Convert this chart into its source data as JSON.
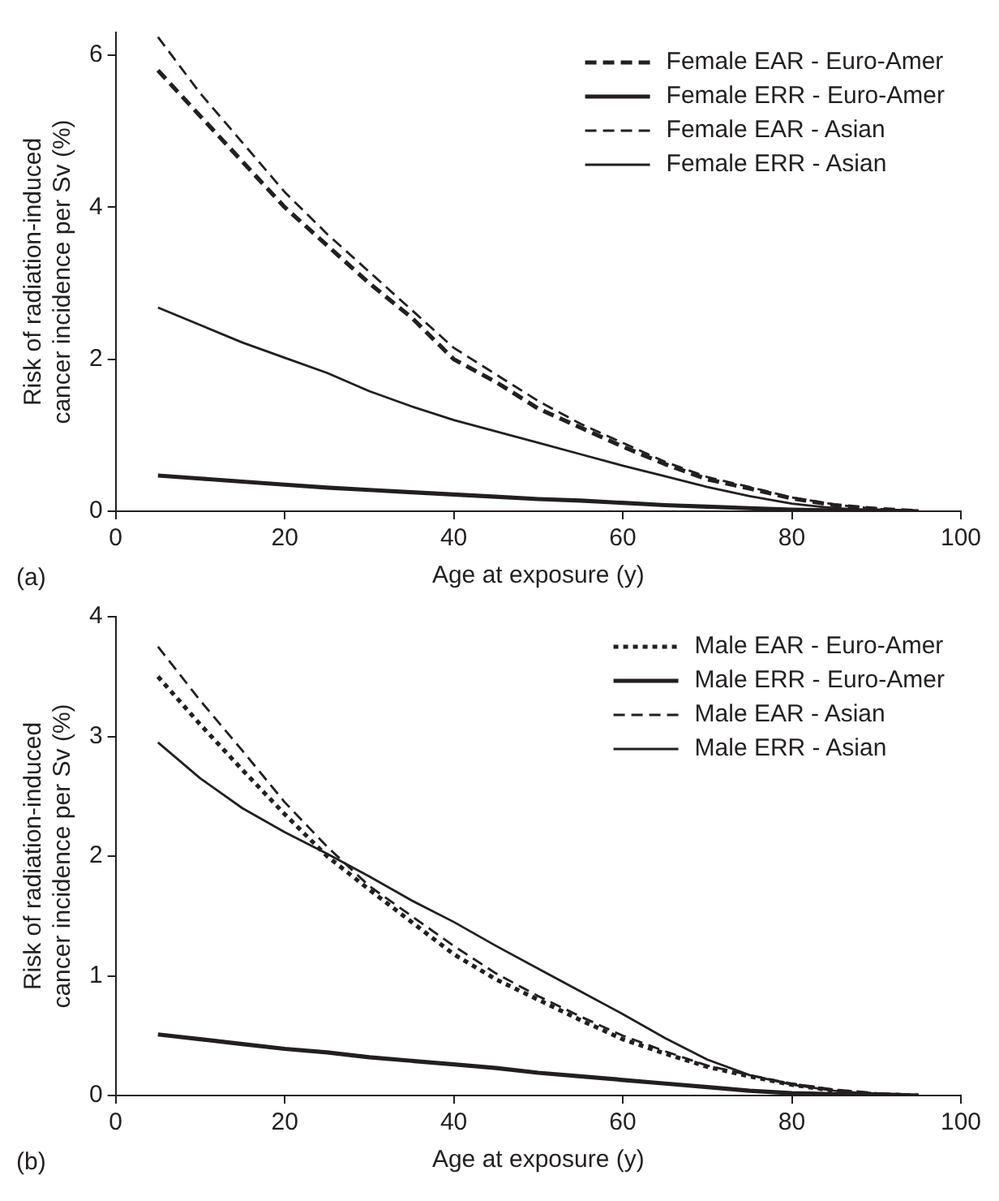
{
  "chart_data": [
    {
      "type": "line",
      "xlabel": "Age at exposure (y)",
      "ylabel": "Risk of radiation-induced\ncancer incidence per Sv (%)",
      "annotations": [
        "(a)"
      ],
      "legend": "top right",
      "grid": false,
      "marker": "none",
      "x": [
        5,
        10,
        15,
        20,
        25,
        30,
        35,
        40,
        45,
        50,
        55,
        60,
        65,
        70,
        75,
        80,
        85,
        90,
        95
      ],
      "xlim": [
        0,
        100
      ],
      "xticks": [
        0,
        20,
        40,
        60,
        80,
        100
      ],
      "ylim": [
        0,
        6.3
      ],
      "yticks": [
        0,
        2,
        4,
        6
      ],
      "series": [
        {
          "name": "Female EAR - Euro-Amer",
          "color": "#231f20",
          "line_style": "dashed",
          "values": [
            5.8,
            5.2,
            4.6,
            4.0,
            3.5,
            3.0,
            2.55,
            2.0,
            1.7,
            1.35,
            1.1,
            0.85,
            0.62,
            0.42,
            0.3,
            0.17,
            0.08,
            0.03,
            0
          ]
        },
        {
          "name": "Female ERR - Euro-Amer",
          "color": "#231f20",
          "line_style": "solid",
          "values": [
            0.47,
            0.43,
            0.39,
            0.35,
            0.31,
            0.28,
            0.25,
            0.22,
            0.19,
            0.16,
            0.14,
            0.11,
            0.08,
            0.06,
            0.04,
            0.02,
            0.01,
            0.01,
            0
          ]
        },
        {
          "name": "Female EAR - Asian",
          "color": "#231f20",
          "line_style": "dashed",
          "values": [
            6.24,
            5.5,
            4.85,
            4.2,
            3.65,
            3.15,
            2.65,
            2.15,
            1.8,
            1.45,
            1.15,
            0.9,
            0.65,
            0.45,
            0.32,
            0.18,
            0.09,
            0.03,
            0
          ]
        },
        {
          "name": "Female ERR - Asian",
          "color": "#231f20",
          "line_style": "solid",
          "values": [
            2.68,
            2.45,
            2.22,
            2.02,
            1.82,
            1.58,
            1.38,
            1.2,
            1.05,
            0.9,
            0.75,
            0.6,
            0.46,
            0.32,
            0.2,
            0.1,
            0.04,
            0.01,
            0
          ]
        }
      ]
    },
    {
      "type": "line",
      "xlabel": "Age at exposure (y)",
      "ylabel": "Risk of radiation-induced\ncancer incidence per Sv (%)",
      "annotations": [
        "(b)"
      ],
      "legend": "top right",
      "grid": false,
      "marker": "none",
      "x": [
        5,
        10,
        15,
        20,
        25,
        30,
        35,
        40,
        45,
        50,
        55,
        60,
        65,
        70,
        75,
        80,
        85,
        90,
        95
      ],
      "xlim": [
        0,
        100
      ],
      "xticks": [
        0,
        20,
        40,
        60,
        80,
        100
      ],
      "ylim": [
        0,
        4
      ],
      "yticks": [
        0,
        1,
        2,
        3,
        4
      ],
      "series": [
        {
          "name": "Male EAR - Euro-Amer",
          "color": "#231f20",
          "line_style": "dotted",
          "values": [
            3.5,
            3.1,
            2.72,
            2.35,
            2.0,
            1.72,
            1.45,
            1.18,
            0.97,
            0.8,
            0.63,
            0.47,
            0.35,
            0.24,
            0.16,
            0.09,
            0.04,
            0.01,
            0
          ]
        },
        {
          "name": "Male ERR - Euro-Amer",
          "color": "#231f20",
          "line_style": "solid",
          "values": [
            0.51,
            0.47,
            0.43,
            0.39,
            0.36,
            0.32,
            0.29,
            0.26,
            0.23,
            0.19,
            0.16,
            0.13,
            0.1,
            0.07,
            0.04,
            0.02,
            0.01,
            0.01,
            0
          ]
        },
        {
          "name": "Male EAR - Asian",
          "color": "#231f20",
          "line_style": "dashed",
          "values": [
            3.75,
            3.3,
            2.88,
            2.45,
            2.08,
            1.75,
            1.5,
            1.25,
            1.02,
            0.83,
            0.66,
            0.5,
            0.37,
            0.25,
            0.17,
            0.1,
            0.05,
            0.02,
            0
          ]
        },
        {
          "name": "Male ERR - Asian",
          "color": "#231f20",
          "line_style": "solid",
          "values": [
            2.95,
            2.65,
            2.4,
            2.2,
            2.02,
            1.83,
            1.63,
            1.45,
            1.25,
            1.06,
            0.87,
            0.68,
            0.48,
            0.3,
            0.17,
            0.09,
            0.04,
            0.01,
            0
          ]
        }
      ]
    }
  ]
}
